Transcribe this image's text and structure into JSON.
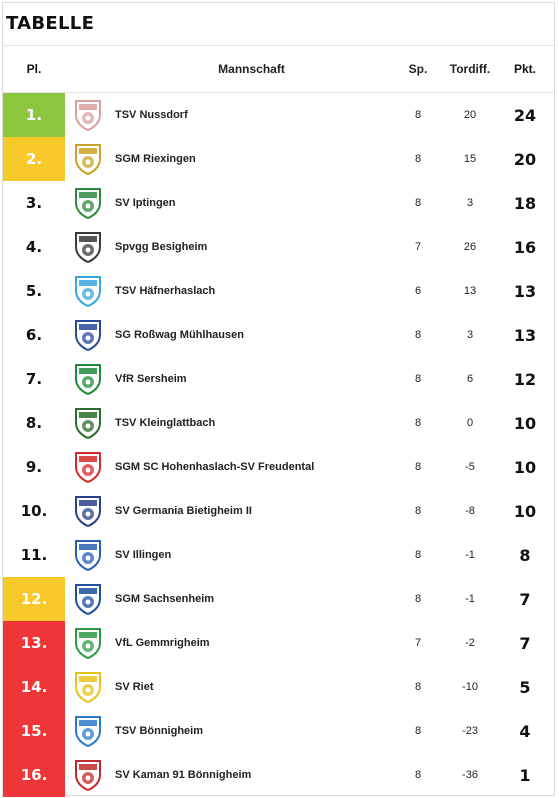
{
  "title": "TABELLE",
  "headers": {
    "pl": "Pl.",
    "team": "Mannschaft",
    "sp": "Sp.",
    "td": "Tordiff.",
    "pkt": "Pkt."
  },
  "colors": {
    "promotion": "#8cc63f",
    "relegation_playoff": "#f7c92a",
    "relegation": "#ee3537"
  },
  "rows": [
    {
      "pl": "1.",
      "team": "TSV Nussdorf",
      "sp": "8",
      "td": "20",
      "pkt": "24",
      "zone": "green",
      "logo": "tsv-nussdorf-crest-icon",
      "crest_color": "#d8a0a0"
    },
    {
      "pl": "2.",
      "team": "SGM Riexingen",
      "sp": "8",
      "td": "15",
      "pkt": "20",
      "zone": "yellow",
      "logo": "sgm-riexingen-crest-icon",
      "crest_color": "#c9a227"
    },
    {
      "pl": "3.",
      "team": "SV Iptingen",
      "sp": "8",
      "td": "3",
      "pkt": "18",
      "zone": "",
      "logo": "sv-iptingen-crest-icon",
      "crest_color": "#2e8b3e"
    },
    {
      "pl": "4.",
      "team": "Spvgg Besigheim",
      "sp": "7",
      "td": "26",
      "pkt": "16",
      "zone": "",
      "logo": "spvgg-besigheim-crest-icon",
      "crest_color": "#3a3a3a"
    },
    {
      "pl": "5.",
      "team": "TSV Häfnerhaslach",
      "sp": "6",
      "td": "13",
      "pkt": "13",
      "zone": "",
      "logo": "tsv-haefnerhaslach-crest-icon",
      "crest_color": "#3aa6dd"
    },
    {
      "pl": "6.",
      "team": "SG Roßwag Mühlhausen",
      "sp": "8",
      "td": "3",
      "pkt": "13",
      "zone": "",
      "logo": "sg-rosswag-crest-icon",
      "crest_color": "#2a4a9a"
    },
    {
      "pl": "7.",
      "team": "VfR Sersheim",
      "sp": "8",
      "td": "6",
      "pkt": "12",
      "zone": "",
      "logo": "vfr-sersheim-crest-icon",
      "crest_color": "#1f8a3a"
    },
    {
      "pl": "8.",
      "team": "TSV Kleinglattbach",
      "sp": "8",
      "td": "0",
      "pkt": "10",
      "zone": "",
      "logo": "tsv-kleinglattbach-crest-icon",
      "crest_color": "#2b6e2b"
    },
    {
      "pl": "9.",
      "team": "SGM SC Hohenhaslach-SV Freudental",
      "sp": "8",
      "td": "-5",
      "pkt": "10",
      "zone": "",
      "logo": "sgm-hohenhaslach-crest-icon",
      "crest_color": "#d42a2a"
    },
    {
      "pl": "10.",
      "team": "SV Germania Bietigheim II",
      "sp": "8",
      "td": "-8",
      "pkt": "10",
      "zone": "",
      "logo": "sv-germania-crest-icon",
      "crest_color": "#2a3f8a"
    },
    {
      "pl": "11.",
      "team": "SV Illingen",
      "sp": "8",
      "td": "-1",
      "pkt": "8",
      "zone": "",
      "logo": "sv-illingen-crest-icon",
      "crest_color": "#2a5fb0"
    },
    {
      "pl": "12.",
      "team": "SGM Sachsenheim",
      "sp": "8",
      "td": "-1",
      "pkt": "7",
      "zone": "yellow",
      "logo": "sgm-sachsenheim-crest-icon",
      "crest_color": "#1f4f9f"
    },
    {
      "pl": "13.",
      "team": "VfL Gemmrigheim",
      "sp": "7",
      "td": "-2",
      "pkt": "7",
      "zone": "red",
      "logo": "vfl-gemmrigheim-crest-icon",
      "crest_color": "#2e9a45"
    },
    {
      "pl": "14.",
      "team": "SV Riet",
      "sp": "8",
      "td": "-10",
      "pkt": "5",
      "zone": "red",
      "logo": "sv-riet-crest-icon",
      "crest_color": "#e8c21a"
    },
    {
      "pl": "15.",
      "team": "TSV Bönnigheim",
      "sp": "8",
      "td": "-23",
      "pkt": "4",
      "zone": "red",
      "logo": "tsv-boennigheim-crest-icon",
      "crest_color": "#2a7bc8"
    },
    {
      "pl": "16.",
      "team": "SV Kaman 91 Bönnigheim",
      "sp": "8",
      "td": "-36",
      "pkt": "1",
      "zone": "red",
      "logo": "sv-kaman-crest-icon",
      "crest_color": "#c02a2a"
    }
  ]
}
